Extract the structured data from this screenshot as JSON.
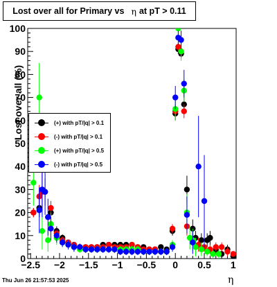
{
  "title": {
    "before": "Lost over all for Primary vs",
    "symbol": "η",
    "after": "at pT > 0.11"
  },
  "footer": "Thu Jun 26 21:57:53 2025",
  "chart_data": {
    "type": "scatter",
    "xlabel": "η",
    "ylabel": "Lost over all (%)",
    "xlim": [
      -2.55,
      1.05
    ],
    "ylim": [
      0,
      100
    ],
    "xticks": [
      "−2.5",
      "−2",
      "−1.5",
      "−1",
      "−0.5",
      "0",
      "0.5",
      "1"
    ],
    "xtick_values": [
      -2.5,
      -2,
      -1.5,
      -1,
      -0.5,
      0,
      0.5,
      1
    ],
    "yticks": [
      "0",
      "10",
      "20",
      "30",
      "40",
      "50",
      "60",
      "70",
      "80",
      "90",
      "100"
    ],
    "ytick_values": [
      0,
      10,
      20,
      30,
      40,
      50,
      60,
      70,
      80,
      90,
      100
    ],
    "grid": true,
    "legend_position": "left-middle",
    "series": [
      {
        "name": "(+) with pT/|q| > 0.1",
        "color": "#000000",
        "points": [
          [
            -2.45,
            20,
            2
          ],
          [
            -2.35,
            22,
            4
          ],
          [
            -2.3,
            30,
            8
          ],
          [
            -2.25,
            29,
            6
          ],
          [
            -2.15,
            20,
            3
          ],
          [
            -2.05,
            12,
            2
          ],
          [
            -1.95,
            9,
            1.5
          ],
          [
            -1.85,
            7,
            1
          ],
          [
            -1.75,
            6,
            1
          ],
          [
            -1.65,
            5,
            1
          ],
          [
            -1.55,
            5,
            1
          ],
          [
            -1.45,
            5,
            1
          ],
          [
            -1.35,
            5,
            1
          ],
          [
            -1.25,
            6,
            1
          ],
          [
            -1.15,
            6,
            1
          ],
          [
            -1.05,
            6,
            1
          ],
          [
            -0.95,
            6,
            1
          ],
          [
            -0.85,
            6,
            1
          ],
          [
            -0.75,
            6,
            1
          ],
          [
            -0.65,
            5,
            1
          ],
          [
            -0.55,
            5,
            1
          ],
          [
            -0.45,
            4,
            1
          ],
          [
            -0.35,
            4,
            1
          ],
          [
            -0.25,
            5,
            1
          ],
          [
            -0.15,
            4,
            1
          ],
          [
            -0.05,
            12,
            2
          ],
          [
            0.0,
            63,
            3
          ],
          [
            0.05,
            91,
            2
          ],
          [
            0.1,
            89,
            2
          ],
          [
            0.15,
            67,
            3
          ],
          [
            0.2,
            30,
            6
          ],
          [
            0.3,
            13,
            4
          ],
          [
            0.35,
            9,
            3
          ],
          [
            0.45,
            8,
            3
          ],
          [
            0.55,
            8,
            3
          ],
          [
            0.6,
            9,
            3
          ],
          [
            0.7,
            4,
            2
          ],
          [
            0.8,
            2,
            2
          ],
          [
            0.9,
            4,
            2
          ],
          [
            1.0,
            1,
            1
          ]
        ]
      },
      {
        "name": "(-) with pT/|q| > 0.1",
        "color": "#ff0000",
        "points": [
          [
            -2.45,
            20,
            2
          ],
          [
            -2.35,
            27,
            5
          ],
          [
            -2.3,
            29,
            8
          ],
          [
            -2.15,
            22,
            3
          ],
          [
            -2.05,
            11,
            2
          ],
          [
            -1.95,
            8,
            1.5
          ],
          [
            -1.85,
            7,
            1
          ],
          [
            -1.75,
            6,
            1
          ],
          [
            -1.65,
            5,
            1
          ],
          [
            -1.55,
            5,
            1
          ],
          [
            -1.45,
            5,
            1
          ],
          [
            -1.35,
            5,
            1
          ],
          [
            -1.25,
            5,
            1
          ],
          [
            -1.15,
            6,
            1
          ],
          [
            -1.05,
            5,
            1
          ],
          [
            -0.95,
            5,
            1
          ],
          [
            -0.85,
            5,
            1
          ],
          [
            -0.75,
            6,
            1
          ],
          [
            -0.65,
            5,
            1
          ],
          [
            -0.55,
            4,
            1
          ],
          [
            -0.45,
            4,
            1
          ],
          [
            -0.35,
            4,
            1
          ],
          [
            -0.25,
            3,
            1
          ],
          [
            -0.15,
            3,
            1
          ],
          [
            -0.05,
            13,
            2
          ],
          [
            0.0,
            64,
            3
          ],
          [
            0.05,
            92,
            2
          ],
          [
            0.1,
            90,
            2
          ],
          [
            0.15,
            64,
            3
          ],
          [
            0.2,
            14,
            4
          ],
          [
            0.3,
            8,
            3
          ],
          [
            0.4,
            6,
            3
          ],
          [
            0.5,
            5,
            2
          ],
          [
            0.6,
            4,
            2
          ],
          [
            0.7,
            5,
            2
          ],
          [
            0.8,
            5,
            2
          ],
          [
            0.9,
            3,
            2
          ],
          [
            1.0,
            2,
            1
          ]
        ]
      },
      {
        "name": "(+) with pT/|q| > 0.5",
        "color": "#00ff00",
        "points": [
          [
            -2.45,
            33,
            10
          ],
          [
            -2.35,
            70,
            15
          ],
          [
            -2.3,
            12,
            8
          ],
          [
            -2.2,
            8,
            5
          ],
          [
            -2.15,
            15,
            5
          ],
          [
            -2.05,
            9,
            3
          ],
          [
            -1.95,
            7,
            2
          ],
          [
            -1.85,
            6,
            2
          ],
          [
            -1.75,
            5,
            2
          ],
          [
            -1.65,
            4,
            1.5
          ],
          [
            -1.55,
            4,
            1.5
          ],
          [
            -1.45,
            4,
            1.5
          ],
          [
            -1.35,
            4,
            1.5
          ],
          [
            -1.25,
            4,
            1.5
          ],
          [
            -1.15,
            4,
            1.5
          ],
          [
            -1.05,
            4,
            1.5
          ],
          [
            -0.95,
            4,
            1.5
          ],
          [
            -0.85,
            4,
            1.5
          ],
          [
            -0.75,
            4,
            1.5
          ],
          [
            -0.65,
            4,
            1.5
          ],
          [
            -0.55,
            3,
            1.5
          ],
          [
            -0.45,
            3,
            1.5
          ],
          [
            -0.35,
            3,
            1.5
          ],
          [
            -0.25,
            3,
            1.5
          ],
          [
            -0.15,
            3,
            1.5
          ],
          [
            -0.05,
            6,
            2
          ],
          [
            0.0,
            65,
            5
          ],
          [
            0.05,
            100,
            3
          ],
          [
            0.1,
            90,
            4
          ],
          [
            0.15,
            73,
            5
          ],
          [
            0.2,
            20,
            8
          ],
          [
            0.25,
            9,
            5
          ],
          [
            0.3,
            8,
            5
          ],
          [
            0.35,
            5,
            4
          ],
          [
            0.45,
            4,
            3
          ],
          [
            0.55,
            3,
            2
          ],
          [
            0.65,
            2,
            2
          ],
          [
            0.75,
            2,
            2
          ]
        ]
      },
      {
        "name": "(-) with pT/|q| > 0.5",
        "color": "#0000ff",
        "points": [
          [
            -2.35,
            21,
            10
          ],
          [
            -2.3,
            30,
            12
          ],
          [
            -2.25,
            29,
            10
          ],
          [
            -2.2,
            18,
            8
          ],
          [
            -2.15,
            13,
            5
          ],
          [
            -2.05,
            10,
            3
          ],
          [
            -1.95,
            7,
            2
          ],
          [
            -1.85,
            6,
            2
          ],
          [
            -1.75,
            5,
            2
          ],
          [
            -1.65,
            5,
            1.5
          ],
          [
            -1.55,
            4,
            1.5
          ],
          [
            -1.45,
            4,
            1.5
          ],
          [
            -1.35,
            4,
            1.5
          ],
          [
            -1.25,
            4,
            1.5
          ],
          [
            -1.15,
            4,
            1.5
          ],
          [
            -1.05,
            4,
            1.5
          ],
          [
            -0.95,
            3,
            1.5
          ],
          [
            -0.85,
            3,
            1.5
          ],
          [
            -0.75,
            3,
            1.5
          ],
          [
            -0.65,
            3,
            1.5
          ],
          [
            -0.55,
            3,
            1.5
          ],
          [
            -0.45,
            3,
            1.5
          ],
          [
            -0.35,
            3,
            1.5
          ],
          [
            -0.25,
            3,
            1.5
          ],
          [
            -0.15,
            3,
            1.5
          ],
          [
            -0.05,
            5,
            2
          ],
          [
            0.0,
            70,
            5
          ],
          [
            0.05,
            96,
            3
          ],
          [
            0.1,
            95,
            4
          ],
          [
            0.15,
            76,
            6
          ],
          [
            0.2,
            19,
            8
          ],
          [
            0.3,
            7,
            5
          ],
          [
            0.4,
            40,
            22
          ],
          [
            0.5,
            25,
            20
          ]
        ]
      }
    ]
  }
}
